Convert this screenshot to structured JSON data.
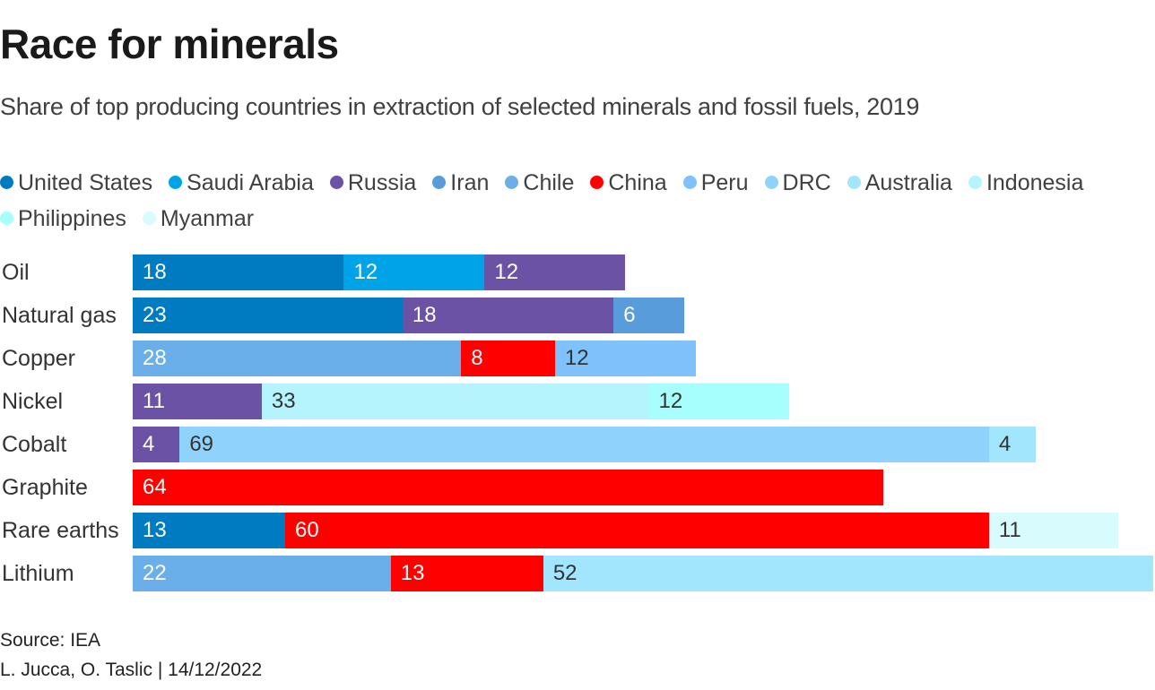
{
  "header": {
    "title": "Race for minerals",
    "subtitle": "Share of top producing countries in extraction of selected minerals and fossil fuels, 2019"
  },
  "footer": {
    "source": "Source: IEA",
    "byline": "L. Jucca, O. Taslic | 14/12/2022"
  },
  "chart_data": {
    "type": "bar",
    "orientation": "horizontal",
    "stacked": true,
    "title": "Race for minerals",
    "subtitle": "Share of top producing countries in extraction of selected minerals and fossil fuels, 2019",
    "xlabel": "",
    "ylabel": "",
    "unit": "%",
    "xlim": [
      0,
      87
    ],
    "grid": false,
    "legend_position": "top",
    "legend": [
      {
        "name": "United States",
        "color": "#007bc2"
      },
      {
        "name": "Saudi Arabia",
        "color": "#00a2e8"
      },
      {
        "name": "Russia",
        "color": "#6b52a4"
      },
      {
        "name": "Iran",
        "color": "#589cdb"
      },
      {
        "name": "Chile",
        "color": "#6aafea"
      },
      {
        "name": "China",
        "color": "#ff0000"
      },
      {
        "name": "Peru",
        "color": "#7fc1fb"
      },
      {
        "name": "DRC",
        "color": "#8fd3fc"
      },
      {
        "name": "Australia",
        "color": "#a1e6fd"
      },
      {
        "name": "Indonesia",
        "color": "#b5f4fd"
      },
      {
        "name": "Philippines",
        "color": "#a6fffd"
      },
      {
        "name": "Myanmar",
        "color": "#d8fcfd"
      }
    ],
    "categories": [
      "Oil",
      "Natural gas",
      "Copper",
      "Nickel",
      "Cobalt",
      "Graphite",
      "Rare earths",
      "Lithium"
    ],
    "rows": [
      {
        "category": "Oil",
        "segments": [
          {
            "country": "United States",
            "value": 18,
            "label_color": "#ffffff"
          },
          {
            "country": "Saudi Arabia",
            "value": 12,
            "label_color": "#ffffff"
          },
          {
            "country": "Russia",
            "value": 12,
            "label_color": "#ffffff"
          }
        ]
      },
      {
        "category": "Natural gas",
        "segments": [
          {
            "country": "United States",
            "value": 23,
            "label_color": "#ffffff"
          },
          {
            "country": "Russia",
            "value": 18,
            "label_color": "#ffffff"
          },
          {
            "country": "Iran",
            "value": 6,
            "label_color": "#ffffff"
          }
        ]
      },
      {
        "category": "Copper",
        "segments": [
          {
            "country": "Chile",
            "value": 28,
            "label_color": "#ffffff"
          },
          {
            "country": "China",
            "value": 8,
            "label_color": "#ffffff"
          },
          {
            "country": "Peru",
            "value": 12,
            "label_color": "#333333"
          }
        ]
      },
      {
        "category": "Nickel",
        "segments": [
          {
            "country": "Russia",
            "value": 11,
            "label_color": "#ffffff"
          },
          {
            "country": "Indonesia",
            "value": 33,
            "label_color": "#333333"
          },
          {
            "country": "Philippines",
            "value": 12,
            "label_color": "#333333"
          }
        ]
      },
      {
        "category": "Cobalt",
        "segments": [
          {
            "country": "Russia",
            "value": 4,
            "label_color": "#ffffff"
          },
          {
            "country": "DRC",
            "value": 69,
            "label_color": "#333333"
          },
          {
            "country": "Australia",
            "value": 4,
            "label_color": "#333333"
          }
        ]
      },
      {
        "category": "Graphite",
        "segments": [
          {
            "country": "China",
            "value": 64,
            "label_color": "#ffffff"
          }
        ]
      },
      {
        "category": "Rare earths",
        "segments": [
          {
            "country": "United States",
            "value": 13,
            "label_color": "#ffffff"
          },
          {
            "country": "China",
            "value": 60,
            "label_color": "#ffffff"
          },
          {
            "country": "Myanmar",
            "value": 11,
            "label_color": "#333333"
          }
        ]
      },
      {
        "category": "Lithium",
        "segments": [
          {
            "country": "Chile",
            "value": 22,
            "label_color": "#ffffff"
          },
          {
            "country": "China",
            "value": 13,
            "label_color": "#ffffff"
          },
          {
            "country": "Australia",
            "value": 52,
            "label_color": "#333333"
          }
        ]
      }
    ]
  }
}
